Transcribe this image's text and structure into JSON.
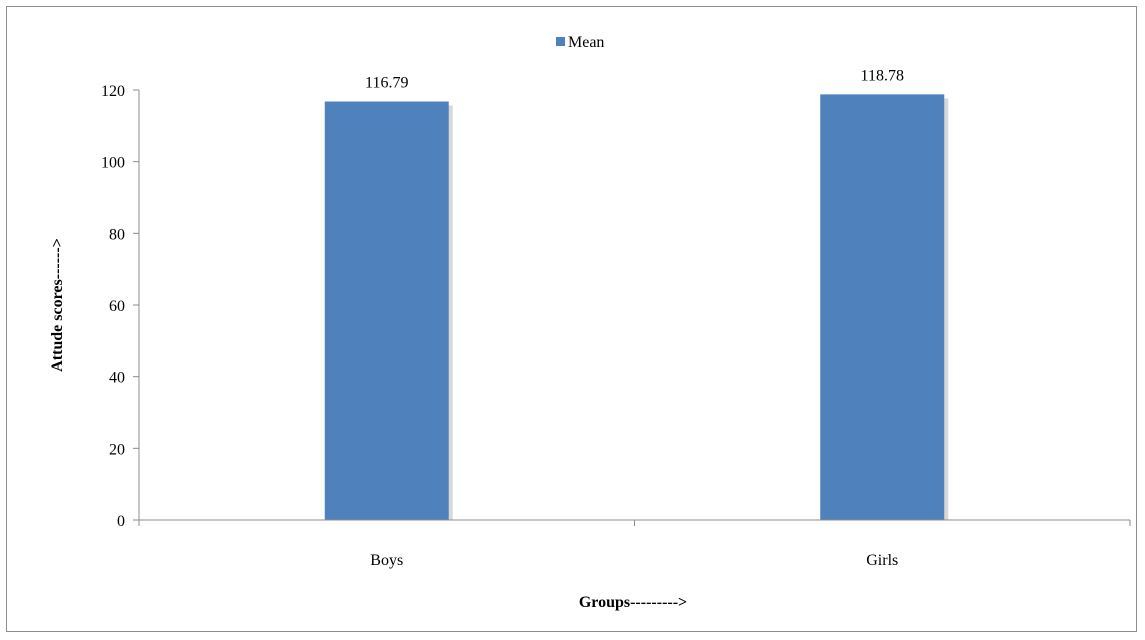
{
  "chart_data": {
    "type": "bar",
    "categories": [
      "Boys",
      "Girls"
    ],
    "series": [
      {
        "name": "Mean",
        "values": [
          116.79,
          118.78
        ],
        "color": "#4f81bd"
      }
    ],
    "data_labels": [
      "116.79",
      "118.78"
    ],
    "xlabel": "Groups--------->",
    "ylabel": "Attude scores------>",
    "ylim": [
      0,
      120
    ],
    "yticks": [
      0,
      20,
      40,
      60,
      80,
      100,
      120
    ],
    "grid": false,
    "legend": "top-center"
  }
}
